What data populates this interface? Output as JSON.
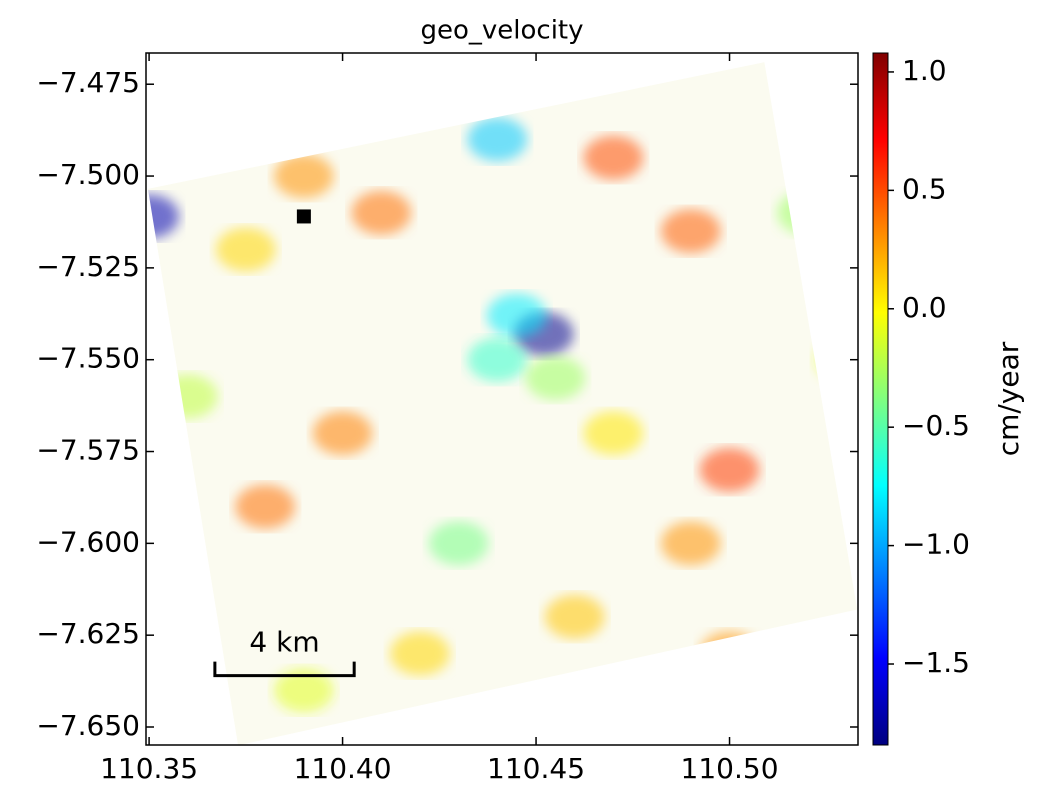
{
  "chart_data": {
    "type": "velocity-map",
    "title": "geo_velocity",
    "colormap": "jet",
    "xlim": [
      110.3492,
      110.5332
    ],
    "ylim": [
      -7.6549,
      -7.4665
    ],
    "xticks": [
      110.35,
      {
        "value": 110.4,
        "label": "110.40"
      },
      110.45,
      {
        "value": 110.5,
        "label": "110.50"
      }
    ],
    "yticks": [
      {
        "value": -7.475,
        "label": "−7.475"
      },
      {
        "value": -7.5,
        "label": "−7.500"
      },
      {
        "value": -7.525,
        "label": "−7.525"
      },
      {
        "value": -7.55,
        "label": "−7.550"
      },
      {
        "value": -7.575,
        "label": "−7.575"
      },
      {
        "value": -7.6,
        "label": "−7.600"
      },
      {
        "value": -7.625,
        "label": "−7.625"
      },
      {
        "value": -7.65,
        "label": "−7.650"
      }
    ],
    "colorbar": {
      "label": "cm/year",
      "clim": [
        -1.842,
        1.08
      ],
      "ticks": [
        {
          "value": -1.5,
          "label": "−1.5"
        },
        {
          "value": -1.0,
          "label": "−1.0"
        },
        {
          "value": -0.5,
          "label": "−0.5"
        },
        {
          "value": 0.0,
          "label": "0.0"
        },
        0.5,
        {
          "value": 1.0,
          "label": "1.0"
        }
      ]
    },
    "footprint": {
      "x": [
        110.3497,
        110.509,
        110.533,
        110.373
      ],
      "y": [
        -7.5035,
        -7.469,
        -7.618,
        -7.655
      ]
    },
    "samples": {
      "x": [
        110.452,
        110.445,
        110.44,
        110.455,
        110.35,
        110.44,
        110.47,
        110.49,
        110.375,
        110.39,
        110.41,
        110.5,
        110.49,
        110.43,
        110.52,
        110.36,
        110.38,
        110.4,
        110.47,
        110.5,
        110.42,
        110.39,
        110.53,
        110.46
      ],
      "y": [
        -7.543,
        -7.538,
        -7.55,
        -7.555,
        -7.511,
        -7.49,
        -7.495,
        -7.515,
        -7.52,
        -7.5,
        -7.51,
        -7.58,
        -7.6,
        -7.6,
        -7.51,
        -7.56,
        -7.59,
        -7.57,
        -7.57,
        -7.63,
        -7.63,
        -7.64,
        -7.55,
        -7.62
      ],
      "values": [
        -1.8,
        -0.8,
        -0.6,
        -0.3,
        -1.7,
        -0.9,
        0.5,
        0.45,
        0.1,
        0.3,
        0.4,
        0.55,
        0.3,
        -0.4,
        -0.3,
        -0.2,
        0.4,
        0.35,
        0.05,
        0.3,
        0.1,
        -0.1,
        -0.1,
        0.15
      ]
    },
    "marker": {
      "x": 110.39,
      "y": -7.511,
      "color": "#000000"
    },
    "scalebar": {
      "label": "4 km",
      "x": [
        110.367,
        110.403
      ],
      "y": -7.636,
      "color": "#000000"
    }
  }
}
